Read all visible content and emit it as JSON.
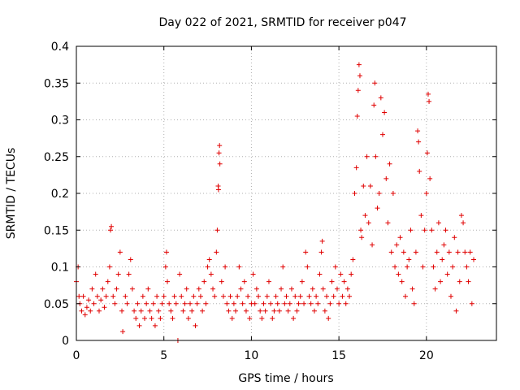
{
  "chart_data": {
    "type": "scatter",
    "title": "Day 022 of 2021, SRMTID for receiver p047",
    "xlabel": "GPS time / hours",
    "ylabel": "SRMTID / TECUs",
    "xlim": [
      0,
      24
    ],
    "ylim": [
      0,
      0.4
    ],
    "x_ticks": [
      0,
      5,
      10,
      15,
      20
    ],
    "y_ticks": [
      0,
      0.05,
      0.1,
      0.15,
      0.2,
      0.25,
      0.3,
      0.35,
      0.4
    ],
    "x_tick_labels": [
      "0",
      "5",
      "10",
      "15",
      "20"
    ],
    "y_tick_labels": [
      "0",
      "0.05",
      "0.1",
      "0.15",
      "0.2",
      "0.25",
      "0.3",
      "0.35",
      "0.4"
    ],
    "grid": true,
    "marker": "+",
    "color": "#e00000",
    "series": [
      {
        "name": "SRMTID",
        "points": [
          [
            0.0,
            0.08
          ],
          [
            0.1,
            0.1
          ],
          [
            0.15,
            0.06
          ],
          [
            0.2,
            0.05
          ],
          [
            0.3,
            0.04
          ],
          [
            0.4,
            0.06
          ],
          [
            0.5,
            0.035
          ],
          [
            0.6,
            0.045
          ],
          [
            0.7,
            0.055
          ],
          [
            0.8,
            0.04
          ],
          [
            0.9,
            0.07
          ],
          [
            1.0,
            0.05
          ],
          [
            1.1,
            0.09
          ],
          [
            1.2,
            0.06
          ],
          [
            1.3,
            0.04
          ],
          [
            1.4,
            0.055
          ],
          [
            1.5,
            0.07
          ],
          [
            1.6,
            0.045
          ],
          [
            1.7,
            0.06
          ],
          [
            1.8,
            0.08
          ],
          [
            1.9,
            0.1
          ],
          [
            1.95,
            0.15
          ],
          [
            2.0,
            0.155
          ],
          [
            2.1,
            0.06
          ],
          [
            2.2,
            0.05
          ],
          [
            2.3,
            0.07
          ],
          [
            2.4,
            0.09
          ],
          [
            2.5,
            0.12
          ],
          [
            2.6,
            0.04
          ],
          [
            2.65,
            0.012
          ],
          [
            2.8,
            0.06
          ],
          [
            2.9,
            0.05
          ],
          [
            3.0,
            0.09
          ],
          [
            3.1,
            0.11
          ],
          [
            3.2,
            0.07
          ],
          [
            3.3,
            0.04
          ],
          [
            3.4,
            0.03
          ],
          [
            3.5,
            0.05
          ],
          [
            3.6,
            0.02
          ],
          [
            3.7,
            0.04
          ],
          [
            3.8,
            0.06
          ],
          [
            3.9,
            0.03
          ],
          [
            4.0,
            0.05
          ],
          [
            4.1,
            0.07
          ],
          [
            4.2,
            0.04
          ],
          [
            4.3,
            0.03
          ],
          [
            4.4,
            0.05
          ],
          [
            4.5,
            0.02
          ],
          [
            4.6,
            0.06
          ],
          [
            4.7,
            0.04
          ],
          [
            4.8,
            0.03
          ],
          [
            4.9,
            0.05
          ],
          [
            5.0,
            0.06
          ],
          [
            5.1,
            0.1
          ],
          [
            5.15,
            0.12
          ],
          [
            5.2,
            0.08
          ],
          [
            5.3,
            0.05
          ],
          [
            5.4,
            0.04
          ],
          [
            5.5,
            0.03
          ],
          [
            5.6,
            0.06
          ],
          [
            5.7,
            0.05
          ],
          [
            5.8,
            0.0
          ],
          [
            5.9,
            0.09
          ],
          [
            6.0,
            0.06
          ],
          [
            6.1,
            0.04
          ],
          [
            6.2,
            0.05
          ],
          [
            6.3,
            0.07
          ],
          [
            6.4,
            0.03
          ],
          [
            6.5,
            0.05
          ],
          [
            6.6,
            0.04
          ],
          [
            6.7,
            0.06
          ],
          [
            6.8,
            0.02
          ],
          [
            6.9,
            0.05
          ],
          [
            7.0,
            0.07
          ],
          [
            7.1,
            0.06
          ],
          [
            7.2,
            0.04
          ],
          [
            7.3,
            0.08
          ],
          [
            7.4,
            0.05
          ],
          [
            7.5,
            0.1
          ],
          [
            7.6,
            0.11
          ],
          [
            7.7,
            0.09
          ],
          [
            7.8,
            0.07
          ],
          [
            7.9,
            0.06
          ],
          [
            8.0,
            0.12
          ],
          [
            8.05,
            0.15
          ],
          [
            8.1,
            0.21
          ],
          [
            8.12,
            0.205
          ],
          [
            8.15,
            0.255
          ],
          [
            8.18,
            0.265
          ],
          [
            8.2,
            0.24
          ],
          [
            8.3,
            0.08
          ],
          [
            8.4,
            0.06
          ],
          [
            8.5,
            0.1
          ],
          [
            8.6,
            0.05
          ],
          [
            8.7,
            0.04
          ],
          [
            8.8,
            0.06
          ],
          [
            8.9,
            0.03
          ],
          [
            9.0,
            0.05
          ],
          [
            9.1,
            0.04
          ],
          [
            9.2,
            0.06
          ],
          [
            9.3,
            0.1
          ],
          [
            9.4,
            0.07
          ],
          [
            9.5,
            0.05
          ],
          [
            9.6,
            0.08
          ],
          [
            9.7,
            0.04
          ],
          [
            9.8,
            0.06
          ],
          [
            9.9,
            0.03
          ],
          [
            10.0,
            0.05
          ],
          [
            10.1,
            0.09
          ],
          [
            10.2,
            0.05
          ],
          [
            10.3,
            0.07
          ],
          [
            10.4,
            0.06
          ],
          [
            10.5,
            0.04
          ],
          [
            10.6,
            0.03
          ],
          [
            10.7,
            0.05
          ],
          [
            10.8,
            0.04
          ],
          [
            10.9,
            0.06
          ],
          [
            11.0,
            0.08
          ],
          [
            11.1,
            0.05
          ],
          [
            11.2,
            0.03
          ],
          [
            11.3,
            0.04
          ],
          [
            11.4,
            0.06
          ],
          [
            11.5,
            0.05
          ],
          [
            11.6,
            0.04
          ],
          [
            11.7,
            0.07
          ],
          [
            11.8,
            0.1
          ],
          [
            11.9,
            0.05
          ],
          [
            12.0,
            0.06
          ],
          [
            12.1,
            0.04
          ],
          [
            12.2,
            0.05
          ],
          [
            12.3,
            0.07
          ],
          [
            12.4,
            0.03
          ],
          [
            12.5,
            0.06
          ],
          [
            12.6,
            0.04
          ],
          [
            12.7,
            0.05
          ],
          [
            12.8,
            0.06
          ],
          [
            12.9,
            0.08
          ],
          [
            13.0,
            0.05
          ],
          [
            13.1,
            0.12
          ],
          [
            13.2,
            0.1
          ],
          [
            13.3,
            0.06
          ],
          [
            13.4,
            0.05
          ],
          [
            13.5,
            0.07
          ],
          [
            13.6,
            0.04
          ],
          [
            13.7,
            0.06
          ],
          [
            13.8,
            0.05
          ],
          [
            13.9,
            0.09
          ],
          [
            14.0,
            0.12
          ],
          [
            14.05,
            0.135
          ],
          [
            14.1,
            0.07
          ],
          [
            14.2,
            0.04
          ],
          [
            14.3,
            0.06
          ],
          [
            14.4,
            0.03
          ],
          [
            14.5,
            0.05
          ],
          [
            14.6,
            0.08
          ],
          [
            14.7,
            0.06
          ],
          [
            14.8,
            0.1
          ],
          [
            14.9,
            0.07
          ],
          [
            15.0,
            0.05
          ],
          [
            15.1,
            0.09
          ],
          [
            15.2,
            0.06
          ],
          [
            15.3,
            0.08
          ],
          [
            15.4,
            0.05
          ],
          [
            15.5,
            0.07
          ],
          [
            15.6,
            0.06
          ],
          [
            15.7,
            0.09
          ],
          [
            15.8,
            0.11
          ],
          [
            15.9,
            0.2
          ],
          [
            16.0,
            0.235
          ],
          [
            16.05,
            0.305
          ],
          [
            16.1,
            0.34
          ],
          [
            16.15,
            0.375
          ],
          [
            16.2,
            0.36
          ],
          [
            16.25,
            0.15
          ],
          [
            16.3,
            0.14
          ],
          [
            16.4,
            0.21
          ],
          [
            16.5,
            0.17
          ],
          [
            16.6,
            0.25
          ],
          [
            16.7,
            0.16
          ],
          [
            16.8,
            0.21
          ],
          [
            16.9,
            0.13
          ],
          [
            17.0,
            0.32
          ],
          [
            17.05,
            0.35
          ],
          [
            17.1,
            0.25
          ],
          [
            17.2,
            0.18
          ],
          [
            17.3,
            0.2
          ],
          [
            17.4,
            0.33
          ],
          [
            17.5,
            0.28
          ],
          [
            17.6,
            0.31
          ],
          [
            17.7,
            0.22
          ],
          [
            17.8,
            0.16
          ],
          [
            17.9,
            0.24
          ],
          [
            18.0,
            0.12
          ],
          [
            18.1,
            0.2
          ],
          [
            18.2,
            0.1
          ],
          [
            18.3,
            0.13
          ],
          [
            18.4,
            0.09
          ],
          [
            18.5,
            0.14
          ],
          [
            18.6,
            0.08
          ],
          [
            18.7,
            0.12
          ],
          [
            18.8,
            0.06
          ],
          [
            18.9,
            0.1
          ],
          [
            19.0,
            0.11
          ],
          [
            19.1,
            0.15
          ],
          [
            19.2,
            0.07
          ],
          [
            19.3,
            0.05
          ],
          [
            19.4,
            0.12
          ],
          [
            19.5,
            0.285
          ],
          [
            19.55,
            0.27
          ],
          [
            19.6,
            0.23
          ],
          [
            19.7,
            0.17
          ],
          [
            19.8,
            0.1
          ],
          [
            19.9,
            0.15
          ],
          [
            20.0,
            0.2
          ],
          [
            20.05,
            0.255
          ],
          [
            20.1,
            0.335
          ],
          [
            20.15,
            0.325
          ],
          [
            20.2,
            0.22
          ],
          [
            20.3,
            0.15
          ],
          [
            20.4,
            0.1
          ],
          [
            20.5,
            0.07
          ],
          [
            20.6,
            0.12
          ],
          [
            20.7,
            0.16
          ],
          [
            20.8,
            0.08
          ],
          [
            20.9,
            0.11
          ],
          [
            21.0,
            0.13
          ],
          [
            21.1,
            0.15
          ],
          [
            21.2,
            0.09
          ],
          [
            21.3,
            0.12
          ],
          [
            21.4,
            0.06
          ],
          [
            21.5,
            0.1
          ],
          [
            21.6,
            0.14
          ],
          [
            21.7,
            0.04
          ],
          [
            21.8,
            0.12
          ],
          [
            21.9,
            0.08
          ],
          [
            22.0,
            0.17
          ],
          [
            22.1,
            0.16
          ],
          [
            22.2,
            0.12
          ],
          [
            22.3,
            0.1
          ],
          [
            22.4,
            0.08
          ],
          [
            22.5,
            0.12
          ],
          [
            22.6,
            0.05
          ],
          [
            22.7,
            0.11
          ]
        ]
      }
    ]
  }
}
